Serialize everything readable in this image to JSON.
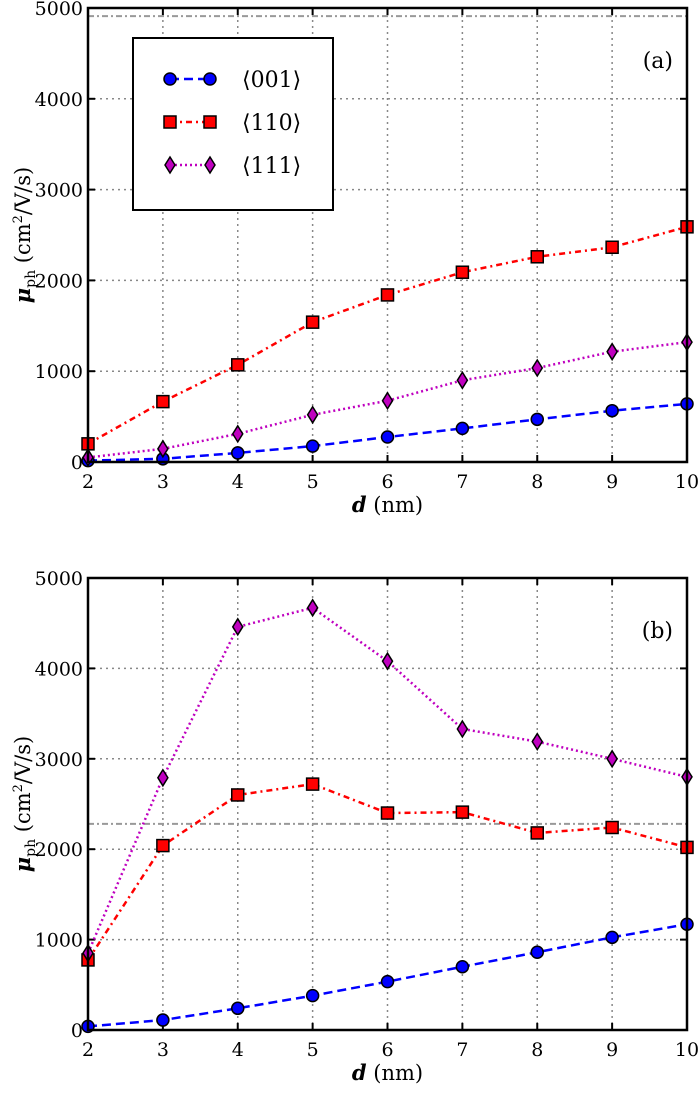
{
  "chart_data": [
    {
      "type": "line",
      "panel_label": "(a)",
      "xlabel_var": "d",
      "xlabel_unit": " (nm)",
      "ylabel_var": "μ",
      "ylabel_sub": "ph",
      "ylabel_unit_pre": " (cm",
      "ylabel_unit_sup": "2",
      "ylabel_unit_post": "/V/s)",
      "xlim": [
        2,
        10
      ],
      "ylim": [
        0,
        5000
      ],
      "xticks": [
        "2",
        "3",
        "4",
        "5",
        "6",
        "7",
        "8",
        "9",
        "10"
      ],
      "yticks": [
        "0",
        "1000",
        "2000",
        "3000",
        "4000",
        "5000"
      ],
      "grid": true,
      "legend_position": "top-left",
      "reference_line": 4910,
      "x": [
        2,
        3,
        4,
        5,
        6,
        7,
        8,
        9,
        10
      ],
      "series": [
        {
          "name": "⟨001⟩",
          "color": "#0000ff",
          "marker": "circle",
          "dash": "dashed",
          "values": [
            15,
            35,
            100,
            175,
            275,
            370,
            470,
            565,
            640
          ]
        },
        {
          "name": "⟨110⟩",
          "color": "#ff0000",
          "marker": "square",
          "dash": "dashdot",
          "values": [
            200,
            665,
            1070,
            1540,
            1840,
            2090,
            2260,
            2365,
            2590
          ]
        },
        {
          "name": "⟨111⟩",
          "color": "#bf00bf",
          "marker": "diamond",
          "dash": "dotted",
          "values": [
            50,
            145,
            310,
            520,
            675,
            900,
            1035,
            1215,
            1320
          ]
        }
      ]
    },
    {
      "type": "line",
      "panel_label": "(b)",
      "xlabel_var": "d",
      "xlabel_unit": " (nm)",
      "ylabel_var": "μ",
      "ylabel_sub": "ph",
      "ylabel_unit_pre": " (cm",
      "ylabel_unit_sup": "2",
      "ylabel_unit_post": "/V/s)",
      "xlim": [
        2,
        10
      ],
      "ylim": [
        0,
        5000
      ],
      "xticks": [
        "2",
        "3",
        "4",
        "5",
        "6",
        "7",
        "8",
        "9",
        "10"
      ],
      "yticks": [
        "0",
        "1000",
        "2000",
        "3000",
        "4000",
        "5000"
      ],
      "grid": true,
      "reference_line": 2280,
      "x": [
        2,
        3,
        4,
        5,
        6,
        7,
        8,
        9,
        10
      ],
      "series": [
        {
          "color": "#0000ff",
          "marker": "circle",
          "dash": "dashed",
          "values": [
            40,
            110,
            240,
            380,
            535,
            700,
            860,
            1025,
            1170
          ]
        },
        {
          "color": "#ff0000",
          "marker": "square",
          "dash": "dashdot",
          "values": [
            775,
            2040,
            2600,
            2720,
            2400,
            2410,
            2180,
            2240,
            2020
          ]
        },
        {
          "color": "#bf00bf",
          "marker": "diamond",
          "dash": "dotted",
          "values": [
            850,
            2790,
            4460,
            4670,
            4080,
            3330,
            3190,
            3000,
            2800
          ]
        }
      ]
    }
  ]
}
